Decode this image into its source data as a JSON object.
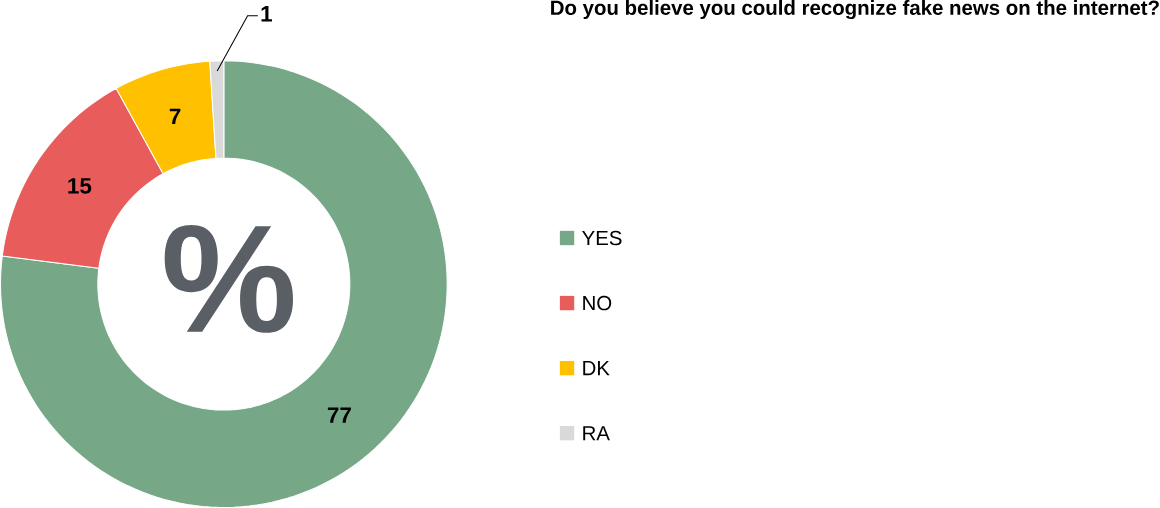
{
  "chart_data": {
    "type": "donut",
    "title": "Do you believe you could recognize fake news on the internet?",
    "categories": [
      "YES",
      "NO",
      "DK",
      "RA"
    ],
    "values": [
      77,
      15,
      7,
      1
    ],
    "colors": [
      "#76a887",
      "#e95c5c",
      "#ffc000",
      "#d9d9d9"
    ],
    "data_labels": true,
    "legend": "right",
    "annotations": [
      "%"
    ]
  }
}
